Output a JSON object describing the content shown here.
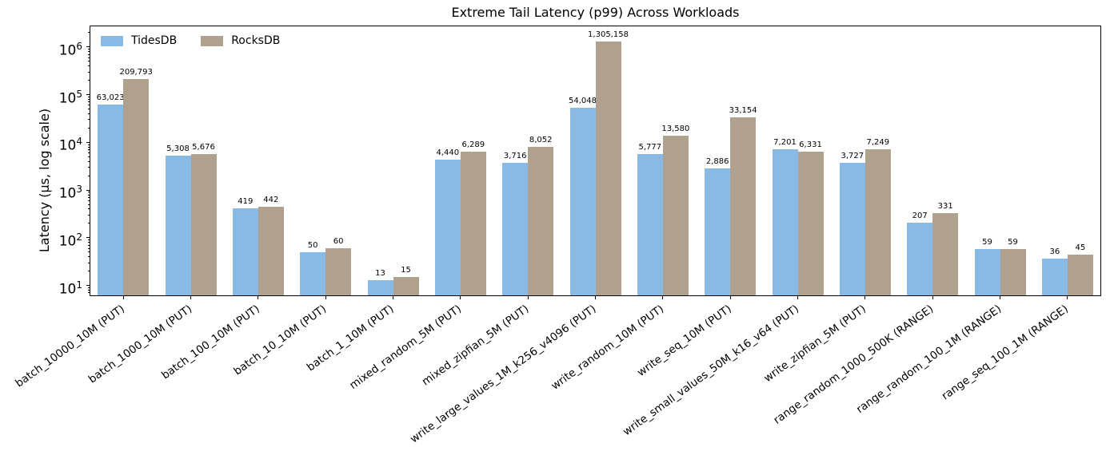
{
  "chart_data": {
    "type": "bar",
    "title": "Extreme Tail Latency (p99) Across Workloads",
    "xlabel": "",
    "ylabel": "Latency (µs, log scale)",
    "yscale": "log",
    "ylim": [
      6,
      2820000
    ],
    "yticks": [
      10,
      100,
      1000,
      10000,
      100000,
      1000000
    ],
    "grid": false,
    "legend_position": "upper left",
    "bar_value_labels": true,
    "x_tick_rotation_deg": 36,
    "categories": [
      "batch_10000_10M (PUT)",
      "batch_1000_10M (PUT)",
      "batch_100_10M (PUT)",
      "batch_10_10M (PUT)",
      "batch_1_10M (PUT)",
      "mixed_random_5M (PUT)",
      "mixed_zipfian_5M (PUT)",
      "write_large_values_1M_k256_v4096 (PUT)",
      "write_random_10M (PUT)",
      "write_seq_10M (PUT)",
      "write_small_values_50M_k16_v64 (PUT)",
      "write_zipfian_5M (PUT)",
      "range_random_1000_500K (RANGE)",
      "range_random_100_1M (RANGE)",
      "range_seq_100_1M (RANGE)"
    ],
    "series": [
      {
        "name": "TidesDB",
        "color": "#89BAE6",
        "values": [
          63023,
          5308,
          419,
          50,
          13,
          4440,
          3716,
          54048,
          5777,
          2886,
          7201,
          3727,
          207,
          59,
          36
        ]
      },
      {
        "name": "RocksDB",
        "color": "#B0A18E",
        "values": [
          209793,
          5676,
          442,
          60,
          15,
          6289,
          8052,
          1305158,
          13580,
          33154,
          6331,
          7249,
          331,
          59,
          45
        ]
      }
    ],
    "colors": {
      "spine": "#000000",
      "text": "#000000",
      "background": "#ffffff"
    }
  }
}
